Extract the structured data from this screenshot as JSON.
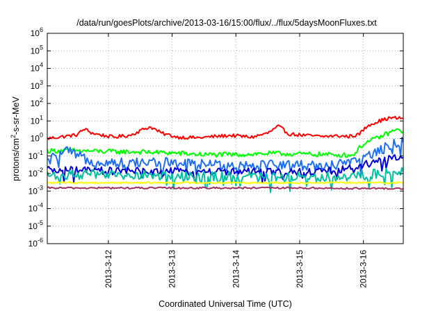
{
  "chart_data": {
    "type": "line",
    "title": "/data/run/goesPlots/archive/2013-03-16/15:00/flux/../flux/5daysMoonFluxes.txt",
    "xlabel": "Coordinated Universal Time (UTC)",
    "ylabel_parts": [
      "protons/cm",
      "2",
      "-s-sr-MeV"
    ],
    "x_range": [
      "2013-03-11 01:00",
      "2013-03-16 15:00"
    ],
    "x_ticks": [
      "2013-3-12",
      "2013-3-13",
      "2013-3-14",
      "2013-3-15",
      "2013-3-16"
    ],
    "y_scale": "log",
    "ylim": [
      1e-06,
      1000000.0
    ],
    "y_tick_exponents": [
      "-6",
      "-5",
      "-4",
      "-3",
      "-2",
      "-1",
      "0",
      "1",
      "2",
      "3",
      "4",
      "5",
      "6"
    ],
    "grid": true,
    "legend": "none",
    "series": [
      {
        "color": "#ff0000",
        "x": [
          "2013-03-11 01:00",
          "2013-03-11 12:00",
          "2013-03-11 15:00",
          "2013-03-11 18:00",
          "2013-03-11 22:00",
          "2013-03-12 02:00",
          "2013-03-12 08:00",
          "2013-03-12 14:00",
          "2013-03-12 16:00",
          "2013-03-12 20:00",
          "2013-03-13 02:00",
          "2013-03-13 10:00",
          "2013-03-13 16:00",
          "2013-03-13 22:00",
          "2013-03-14 06:00",
          "2013-03-14 12:00",
          "2013-03-14 16:00",
          "2013-03-14 18:00",
          "2013-03-14 20:00",
          "2013-03-15 02:00",
          "2013-03-15 08:00",
          "2013-03-15 14:00",
          "2013-03-15 18:00",
          "2013-03-15 22:00",
          "2013-03-16 02:00",
          "2013-03-16 06:00",
          "2013-03-16 10:00",
          "2013-03-16 15:00"
        ],
        "y": [
          1.0,
          1.6,
          3.5,
          2.0,
          1.5,
          1.2,
          1.5,
          3.8,
          4.5,
          2.0,
          1.2,
          1.1,
          1.3,
          1.5,
          1.2,
          2.0,
          5.0,
          3.0,
          1.8,
          1.5,
          1.3,
          1.4,
          1.3,
          1.6,
          6.0,
          10,
          15,
          14
        ]
      },
      {
        "color": "#00ff00",
        "x": [
          "2013-03-11 01:00",
          "2013-03-11 12:00",
          "2013-03-12 00:00",
          "2013-03-12 12:00",
          "2013-03-13 00:00",
          "2013-03-13 12:00",
          "2013-03-14 00:00",
          "2013-03-14 12:00",
          "2013-03-15 00:00",
          "2013-03-15 12:00",
          "2013-03-15 20:00",
          "2013-03-16 00:00",
          "2013-03-16 06:00",
          "2013-03-16 12:00",
          "2013-03-16 15:00"
        ],
        "y": [
          0.2,
          0.2,
          0.18,
          0.17,
          0.15,
          0.12,
          0.12,
          0.14,
          0.13,
          0.12,
          0.11,
          0.5,
          1.2,
          3.0,
          2.5
        ]
      },
      {
        "color": "#1e6ef0",
        "x": [
          "2013-03-11 01:00",
          "2013-03-11 08:00",
          "2013-03-11 16:00",
          "2013-03-12 06:00",
          "2013-03-12 18:00",
          "2013-03-13 08:00",
          "2013-03-13 20:00",
          "2013-03-14 10:00",
          "2013-03-14 22:00",
          "2013-03-15 10:00",
          "2013-03-15 20:00",
          "2013-03-16 00:00",
          "2013-03-16 06:00",
          "2013-03-16 12:00",
          "2013-03-16 15:00"
        ],
        "y": [
          0.05,
          0.2,
          0.06,
          0.04,
          0.045,
          0.035,
          0.03,
          0.035,
          0.03,
          0.03,
          0.04,
          0.08,
          0.2,
          0.55,
          0.6
        ]
      },
      {
        "color": "#0000d0",
        "x": [
          "2013-03-11 01:00",
          "2013-03-11 12:00",
          "2013-03-12 00:00",
          "2013-03-12 12:00",
          "2013-03-13 00:00",
          "2013-03-13 12:00",
          "2013-03-14 00:00",
          "2013-03-14 12:00",
          "2013-03-15 00:00",
          "2013-03-15 12:00",
          "2013-03-16 00:00",
          "2013-03-16 08:00",
          "2013-03-16 15:00"
        ],
        "y": [
          0.015,
          0.015,
          0.014,
          0.014,
          0.013,
          0.013,
          0.013,
          0.012,
          0.012,
          0.014,
          0.03,
          0.07,
          0.08
        ]
      },
      {
        "color": "#00c0a0",
        "x": [
          "2013-03-11 01:00",
          "2013-03-11 12:00",
          "2013-03-12 00:00",
          "2013-03-12 12:00",
          "2013-03-13 00:00",
          "2013-03-13 12:00",
          "2013-03-14 00:00",
          "2013-03-14 12:00",
          "2013-03-15 00:00",
          "2013-03-15 12:00",
          "2013-03-16 00:00",
          "2013-03-16 08:00",
          "2013-03-16 15:00"
        ],
        "y": [
          0.008,
          0.009,
          0.008,
          0.008,
          0.007,
          0.007,
          0.007,
          0.006,
          0.007,
          0.006,
          0.008,
          0.011,
          0.012
        ]
      },
      {
        "color": "#ffff00",
        "x": [
          "2013-03-11 01:00",
          "2013-03-12 00:00",
          "2013-03-13 00:00",
          "2013-03-14 00:00",
          "2013-03-15 00:00",
          "2013-03-16 00:00",
          "2013-03-16 15:00"
        ],
        "y": [
          0.003,
          0.003,
          0.003,
          0.003,
          0.003,
          0.003,
          0.003
        ]
      },
      {
        "color": "#a03060",
        "x": [
          "2013-03-11 01:00",
          "2013-03-12 00:00",
          "2013-03-13 00:00",
          "2013-03-14 00:00",
          "2013-03-15 00:00",
          "2013-03-16 00:00",
          "2013-03-16 15:00"
        ],
        "y": [
          0.0015,
          0.0015,
          0.0015,
          0.0015,
          0.0015,
          0.0014,
          0.0014
        ]
      }
    ]
  }
}
